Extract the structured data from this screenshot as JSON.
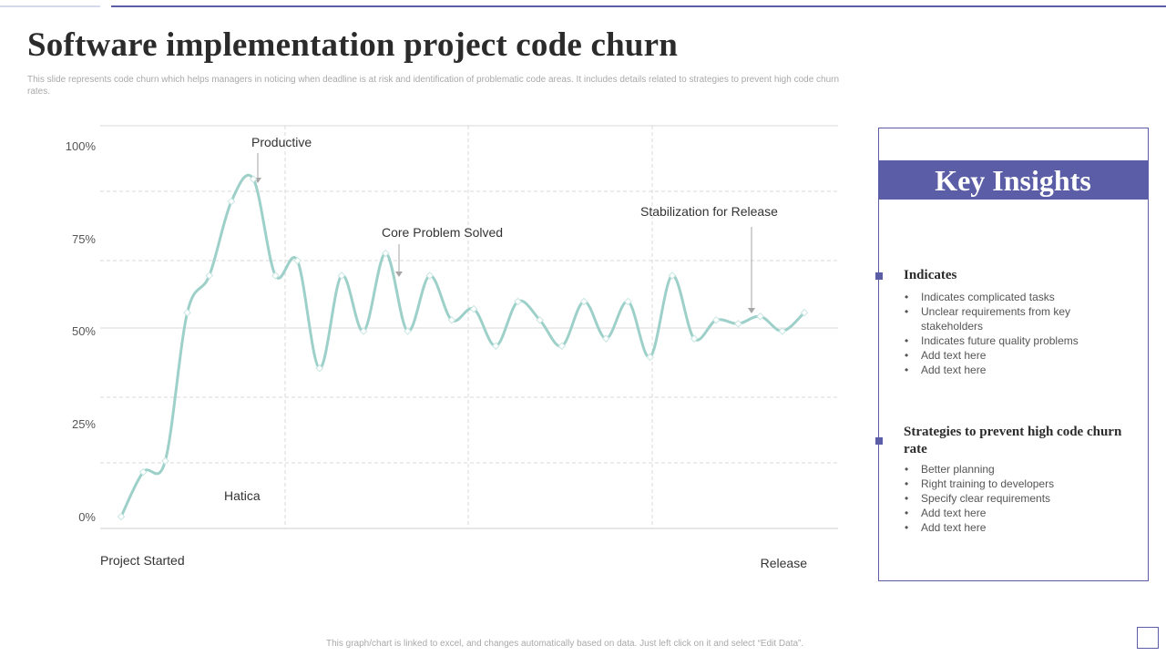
{
  "header": {
    "title": "Software implementation project code churn",
    "subtitle": "This slide represents code churn which helps managers in noticing when deadline is at risk and identification of problematic code areas. It includes details related to strategies to prevent high code churn rates."
  },
  "chart_data": {
    "type": "line",
    "title": "",
    "xlabel": "",
    "ylabel": "",
    "ylim": [
      0,
      100
    ],
    "y_ticks": [
      "0%",
      "25%",
      "50%",
      "75%",
      "100%"
    ],
    "x_start_label": "Project Started",
    "x_end_label": "Release",
    "series": [
      {
        "name": "Code churn",
        "color": "#9dd0c9",
        "values": [
          0,
          12,
          15,
          55,
          65,
          85,
          91,
          65,
          69,
          40,
          65,
          50,
          71,
          50,
          65,
          53,
          56,
          46,
          58,
          53,
          46,
          58,
          48,
          58,
          43,
          65,
          48,
          53,
          52,
          54,
          50,
          55
        ]
      }
    ],
    "annotations": [
      {
        "text": "Productive",
        "point_index": 6
      },
      {
        "text": "Core Problem Solved",
        "point_index": 12
      },
      {
        "text": "Stabilization for Release",
        "point_index": 29
      },
      {
        "text": "Hatica",
        "point_index": null
      }
    ]
  },
  "insights": {
    "heading": "Key Insights",
    "sections": [
      {
        "title": "Indicates",
        "items": [
          "Indicates complicated tasks",
          "Unclear requirements from key stakeholders",
          "Indicates future quality problems",
          "Add text here",
          "Add text here"
        ]
      },
      {
        "title": "Strategies to prevent high code churn rate",
        "items": [
          "Better planning",
          "Right training to developers",
          "Specify clear requirements",
          "Add text here",
          "Add text here"
        ]
      }
    ]
  },
  "footer": {
    "note": "This graph/chart is linked to excel, and changes automatically based on data. Just left click on it and select “Edit Data”."
  },
  "colors": {
    "accent": "#5b5ea6",
    "line": "#9dd0c9",
    "grid": "#d9d9d9"
  }
}
